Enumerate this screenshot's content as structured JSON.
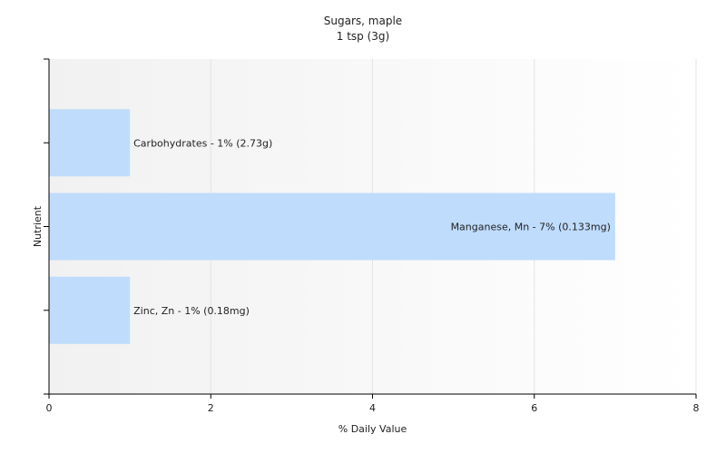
{
  "chart_data": {
    "type": "bar",
    "orientation": "horizontal",
    "title": "Sugars, maple",
    "subtitle": "1 tsp (3g)",
    "xlabel": "% Daily Value",
    "ylabel": "Nutrient",
    "xlim": [
      0,
      8
    ],
    "xticks": [
      0,
      2,
      4,
      6,
      8
    ],
    "grid": true,
    "categories": [
      "Carbohydrates",
      "Manganese, Mn",
      "Zinc, Zn"
    ],
    "values": [
      1,
      7,
      1
    ],
    "data_labels": [
      "Carbohydrates - 1% (2.73g)",
      "Manganese, Mn - 7% (0.133mg)",
      "Zinc, Zn - 1% (0.18mg)"
    ],
    "colors": {
      "bar": "#bfdcfc",
      "plot_background_start": "#f1f1f1",
      "plot_background_end": "#ffffff",
      "grid": "#e4e4e4",
      "axis": "#000000"
    }
  }
}
